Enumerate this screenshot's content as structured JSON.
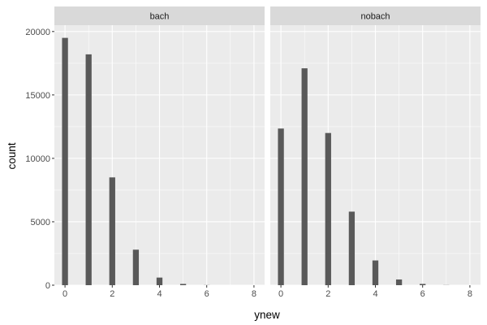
{
  "chart_data": {
    "type": "bar",
    "xlabel": "ynew",
    "ylabel": "count",
    "xlim": [
      -0.45,
      8.45
    ],
    "ylim": [
      0,
      20500
    ],
    "x_ticks": [
      0,
      2,
      4,
      6,
      8
    ],
    "y_ticks": [
      0,
      5000,
      10000,
      15000,
      20000
    ],
    "grid": true,
    "bar_color": "#595959",
    "panel_background": "#EBEBEB",
    "strip_background": "#D9D9D9",
    "panels": [
      {
        "label": "bach",
        "x": [
          0,
          1,
          2,
          3,
          4,
          5,
          6,
          7,
          8
        ],
        "values": [
          19500,
          18200,
          8500,
          2800,
          600,
          100,
          10,
          0,
          0
        ]
      },
      {
        "label": "nobach",
        "x": [
          0,
          1,
          2,
          3,
          4,
          5,
          6,
          7,
          8
        ],
        "values": [
          12350,
          17100,
          12000,
          5800,
          1950,
          450,
          100,
          10,
          0
        ]
      }
    ]
  }
}
